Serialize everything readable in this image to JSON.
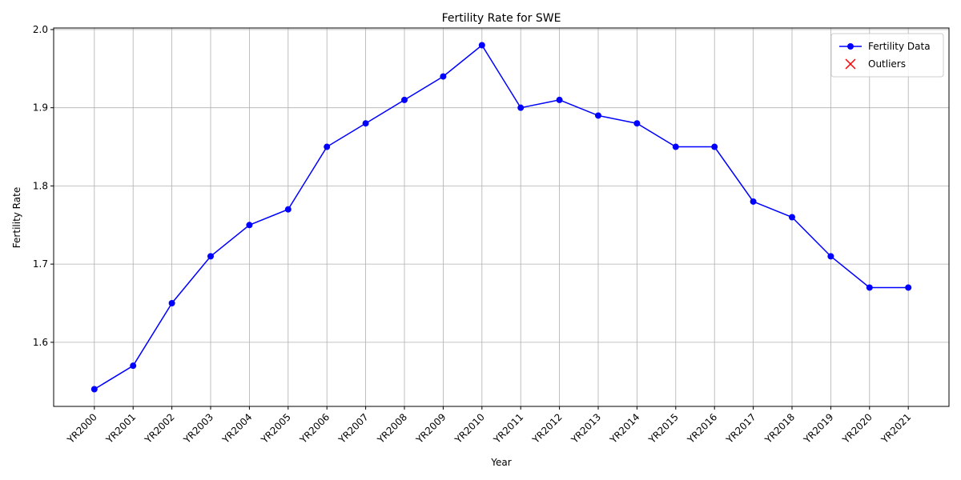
{
  "chart_data": {
    "type": "line",
    "title": "Fertility Rate for SWE",
    "x_label": "Year",
    "y_label": "Fertility Rate",
    "categories": [
      "YR2000",
      "YR2001",
      "YR2002",
      "YR2003",
      "YR2004",
      "YR2005",
      "YR2006",
      "YR2007",
      "YR2008",
      "YR2009",
      "YR2010",
      "YR2011",
      "YR2012",
      "YR2013",
      "YR2014",
      "YR2015",
      "YR2016",
      "YR2017",
      "YR2018",
      "YR2019",
      "YR2020",
      "YR2021"
    ],
    "series": [
      {
        "name": "Fertility Data",
        "color": "#0000ff",
        "marker": "o",
        "values": [
          1.54,
          1.57,
          1.65,
          1.71,
          1.75,
          1.77,
          1.85,
          1.88,
          1.91,
          1.94,
          1.98,
          1.9,
          1.91,
          1.89,
          1.88,
          1.85,
          1.85,
          1.78,
          1.76,
          1.71,
          1.67,
          1.67
        ]
      },
      {
        "name": "Outliers",
        "color": "#ff0000",
        "marker": "x",
        "values": [
          null,
          null,
          null,
          null,
          null,
          null,
          null,
          null,
          null,
          null,
          null,
          null,
          null,
          null,
          null,
          null,
          null,
          null,
          null,
          null,
          null,
          null
        ]
      }
    ],
    "ylim": [
      1.518,
      2.002
    ],
    "yticks": [
      1.6,
      1.7,
      1.8,
      1.9,
      {
        "value": 2,
        "label": "2.0"
      }
    ],
    "grid": true,
    "legend": "upper right"
  }
}
